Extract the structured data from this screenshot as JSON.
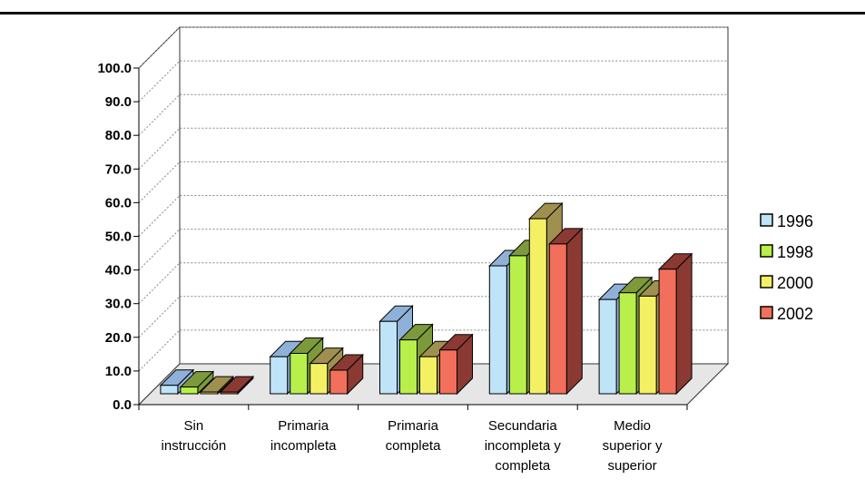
{
  "chart_data": {
    "type": "bar",
    "title": "",
    "xlabel": "",
    "ylabel": "",
    "ylim": [
      0,
      100
    ],
    "y_ticks": [
      "0.0",
      "10.0",
      "20.0",
      "30.0",
      "40.0",
      "50.0",
      "60.0",
      "70.0",
      "80.0",
      "90.0",
      "100.0"
    ],
    "grid": true,
    "legend_position": "right",
    "categories": [
      [
        "Sin",
        "instrucción"
      ],
      [
        "Primaria",
        "incompleta"
      ],
      [
        "Primaria",
        "completa"
      ],
      [
        "Secundaria",
        "incompleta y",
        "completa"
      ],
      [
        "Medio",
        "superior y",
        "superior"
      ]
    ],
    "series": [
      {
        "name": "1996",
        "color": "#bfe3f7",
        "side": "#8fb1d8",
        "values": [
          2.5,
          11.0,
          21.5,
          38.0,
          28.0
        ]
      },
      {
        "name": "1998",
        "color": "#b8ef4a",
        "side": "#7c9a3c",
        "values": [
          2.0,
          12.0,
          16.0,
          41.0,
          30.0
        ]
      },
      {
        "name": "2000",
        "color": "#f4f064",
        "side": "#a09050",
        "values": [
          0.5,
          9.0,
          11.0,
          52.0,
          29.0
        ]
      },
      {
        "name": "2002",
        "color": "#f26f5c",
        "side": "#8a3a33",
        "values": [
          0.5,
          7.0,
          13.0,
          44.5,
          37.0
        ]
      }
    ]
  }
}
